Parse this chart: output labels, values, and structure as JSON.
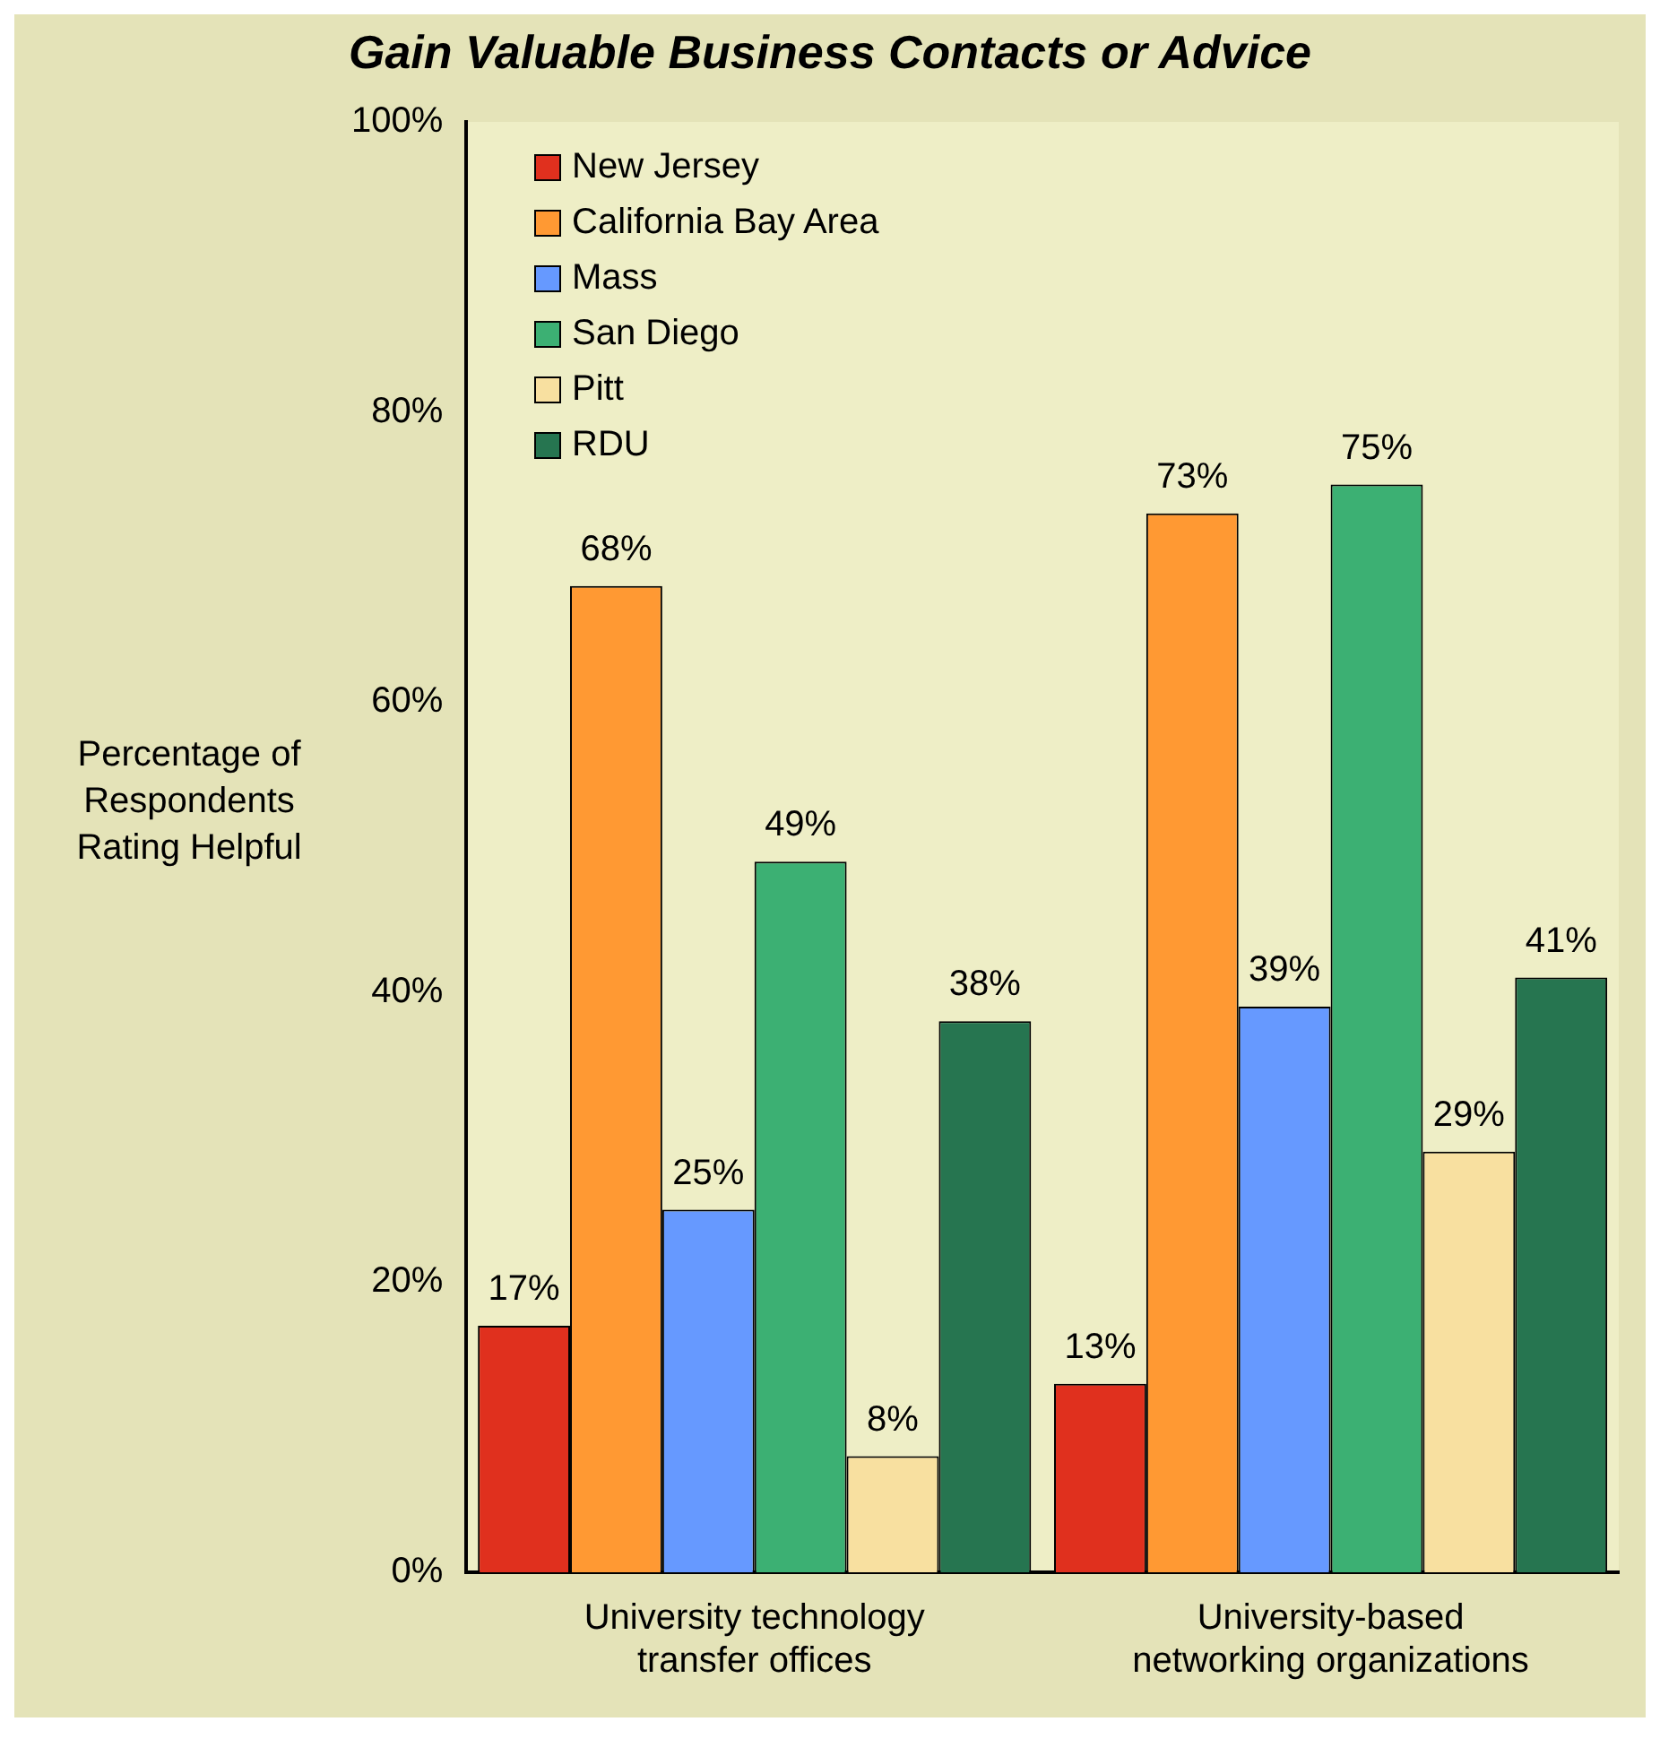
{
  "chart_data": {
    "type": "bar",
    "title": "Gain Valuable Business Contacts or Advice",
    "ylabel": "Percentage of Respondents Rating Helpful",
    "categories": [
      "University technology transfer offices",
      "University-based networking organizations"
    ],
    "series": [
      {
        "name": "New Jersey",
        "color": "#e0301e",
        "values": [
          17,
          13
        ],
        "value_labels": [
          "17%",
          "13%"
        ]
      },
      {
        "name": "California Bay Area",
        "color": "#ff9933",
        "values": [
          68,
          73
        ],
        "value_labels": [
          "68%",
          "73%"
        ]
      },
      {
        "name": "Mass",
        "color": "#6699ff",
        "values": [
          25,
          39
        ],
        "value_labels": [
          "25%",
          "39%"
        ]
      },
      {
        "name": "San Diego",
        "color": "#3cb073",
        "values": [
          49,
          75
        ],
        "value_labels": [
          "49%",
          "75%"
        ]
      },
      {
        "name": "Pitt",
        "color": "#f8e0a0",
        "values": [
          8,
          29
        ],
        "value_labels": [
          "8%",
          "29%"
        ]
      },
      {
        "name": "RDU",
        "color": "#267550",
        "values": [
          38,
          41
        ],
        "value_labels": [
          "38%",
          "41%"
        ]
      }
    ],
    "ylim": [
      0,
      100
    ],
    "yticks": [
      {
        "value": 0,
        "label": "0%"
      },
      {
        "value": 20,
        "label": "20%"
      },
      {
        "value": 40,
        "label": "40%"
      },
      {
        "value": 60,
        "label": "60%"
      },
      {
        "value": 80,
        "label": "80%"
      },
      {
        "value": 100,
        "label": "100%"
      }
    ],
    "legend": "top left",
    "grid": false
  }
}
